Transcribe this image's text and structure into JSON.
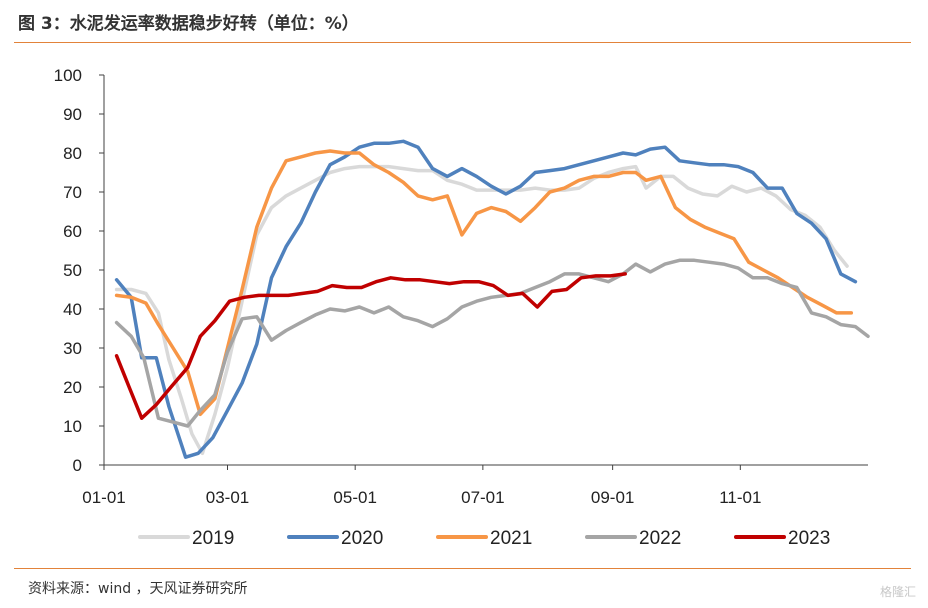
{
  "header": {
    "title": "图 3：水泥发运率数据稳步好转（单位：%）"
  },
  "footer": {
    "source": "资料来源：wind ，天风证券研究所",
    "watermark": "格隆汇"
  },
  "chart_data": {
    "type": "line",
    "title": "图 3：水泥发运率数据稳步好转（单位：%）",
    "xlabel": "",
    "ylabel": "",
    "ylim": [
      0,
      100
    ],
    "yticks": [
      0,
      10,
      20,
      30,
      40,
      50,
      60,
      70,
      80,
      90,
      100
    ],
    "xlim": [
      1,
      366
    ],
    "xticks": [
      {
        "label": "01-01",
        "day": 1
      },
      {
        "label": "03-01",
        "day": 60
      },
      {
        "label": "05-01",
        "day": 121
      },
      {
        "label": "07-01",
        "day": 182
      },
      {
        "label": "09-01",
        "day": 244
      },
      {
        "label": "11-01",
        "day": 305
      }
    ],
    "x_unit": "day of year",
    "legend_position": "bottom",
    "grid": false,
    "series": [
      {
        "name": "2019",
        "color": "#d9d9d9",
        "points": [
          [
            7,
            45
          ],
          [
            14,
            45
          ],
          [
            21,
            44
          ],
          [
            27,
            39
          ],
          [
            32,
            27
          ],
          [
            38,
            17
          ],
          [
            43,
            8
          ],
          [
            48,
            3
          ],
          [
            54,
            13
          ],
          [
            60,
            25
          ],
          [
            67,
            42
          ],
          [
            74,
            59
          ],
          [
            81,
            66
          ],
          [
            88,
            69
          ],
          [
            95,
            71
          ],
          [
            102,
            73
          ],
          [
            109,
            75
          ],
          [
            116,
            76
          ],
          [
            123,
            76.5
          ],
          [
            130,
            76.5
          ],
          [
            137,
            76.5
          ],
          [
            144,
            76
          ],
          [
            151,
            75.5
          ],
          [
            158,
            75.5
          ],
          [
            165,
            73
          ],
          [
            172,
            72
          ],
          [
            179,
            70.5
          ],
          [
            186,
            70.5
          ],
          [
            193,
            70.5
          ],
          [
            200,
            70.5
          ],
          [
            207,
            71
          ],
          [
            214,
            70.5
          ],
          [
            221,
            70.5
          ],
          [
            228,
            71
          ],
          [
            235,
            73.5
          ],
          [
            242,
            75
          ],
          [
            249,
            76
          ],
          [
            255,
            76.5
          ],
          [
            260,
            71
          ],
          [
            267,
            74
          ],
          [
            273,
            74
          ],
          [
            280,
            71
          ],
          [
            287,
            69.5
          ],
          [
            294,
            69
          ],
          [
            301,
            71.5
          ],
          [
            308,
            70
          ],
          [
            315,
            71
          ],
          [
            322,
            69
          ],
          [
            329,
            65.5
          ],
          [
            336,
            64
          ],
          [
            343,
            61
          ],
          [
            350,
            55
          ],
          [
            356,
            51
          ]
        ]
      },
      {
        "name": "2020",
        "color": "#4f81bd",
        "points": [
          [
            7,
            47.5
          ],
          [
            14,
            43
          ],
          [
            19,
            27.5
          ],
          [
            26,
            27.5
          ],
          [
            32,
            15
          ],
          [
            40,
            2
          ],
          [
            46,
            3
          ],
          [
            53,
            7
          ],
          [
            60,
            14
          ],
          [
            67,
            21
          ],
          [
            74,
            31
          ],
          [
            81,
            48
          ],
          [
            88,
            56
          ],
          [
            95,
            62
          ],
          [
            102,
            70
          ],
          [
            109,
            77
          ],
          [
            116,
            79
          ],
          [
            123,
            81.5
          ],
          [
            130,
            82.5
          ],
          [
            137,
            82.5
          ],
          [
            144,
            83
          ],
          [
            151,
            81.5
          ],
          [
            158,
            76
          ],
          [
            165,
            74
          ],
          [
            172,
            76
          ],
          [
            179,
            74
          ],
          [
            186,
            71.5
          ],
          [
            193,
            69.5
          ],
          [
            200,
            71.5
          ],
          [
            207,
            75
          ],
          [
            214,
            75.5
          ],
          [
            221,
            76
          ],
          [
            228,
            77
          ],
          [
            235,
            78
          ],
          [
            242,
            79
          ],
          [
            249,
            80
          ],
          [
            255,
            79.5
          ],
          [
            262,
            81
          ],
          [
            269,
            81.5
          ],
          [
            276,
            78
          ],
          [
            283,
            77.5
          ],
          [
            290,
            77
          ],
          [
            297,
            77
          ],
          [
            304,
            76.5
          ],
          [
            311,
            75
          ],
          [
            318,
            71
          ],
          [
            325,
            71
          ],
          [
            332,
            64.5
          ],
          [
            339,
            62
          ],
          [
            346,
            58
          ],
          [
            353,
            49
          ],
          [
            360,
            47
          ]
        ]
      },
      {
        "name": "2021",
        "color": "#f79646",
        "points": [
          [
            7,
            43.5
          ],
          [
            14,
            43
          ],
          [
            21,
            41.5
          ],
          [
            27,
            36
          ],
          [
            34,
            30
          ],
          [
            41,
            24
          ],
          [
            47,
            13
          ],
          [
            54,
            17
          ],
          [
            60,
            30
          ],
          [
            67,
            45
          ],
          [
            74,
            61
          ],
          [
            81,
            71
          ],
          [
            88,
            78
          ],
          [
            95,
            79
          ],
          [
            102,
            80
          ],
          [
            109,
            80.5
          ],
          [
            116,
            80
          ],
          [
            123,
            80
          ],
          [
            130,
            77
          ],
          [
            137,
            75
          ],
          [
            144,
            72.5
          ],
          [
            151,
            69
          ],
          [
            158,
            68
          ],
          [
            165,
            69
          ],
          [
            172,
            59
          ],
          [
            179,
            64.5
          ],
          [
            186,
            66
          ],
          [
            193,
            65
          ],
          [
            200,
            62.5
          ],
          [
            207,
            66
          ],
          [
            214,
            70
          ],
          [
            221,
            71
          ],
          [
            228,
            73
          ],
          [
            235,
            74
          ],
          [
            242,
            74
          ],
          [
            249,
            75
          ],
          [
            255,
            75
          ],
          [
            260,
            73
          ],
          [
            267,
            74
          ],
          [
            274,
            66
          ],
          [
            281,
            63
          ],
          [
            288,
            61
          ],
          [
            295,
            59.5
          ],
          [
            302,
            58
          ],
          [
            309,
            52
          ],
          [
            316,
            50
          ],
          [
            323,
            48
          ],
          [
            330,
            45.5
          ],
          [
            337,
            43
          ],
          [
            344,
            41
          ],
          [
            351,
            39
          ],
          [
            358,
            39
          ]
        ]
      },
      {
        "name": "2022",
        "color": "#a5a5a5",
        "points": [
          [
            7,
            36.5
          ],
          [
            14,
            33
          ],
          [
            20,
            27.5
          ],
          [
            27,
            12
          ],
          [
            34,
            11
          ],
          [
            41,
            10
          ],
          [
            47,
            14
          ],
          [
            54,
            18
          ],
          [
            60,
            29
          ],
          [
            67,
            37.5
          ],
          [
            74,
            38
          ],
          [
            81,
            32
          ],
          [
            88,
            34.5
          ],
          [
            95,
            36.5
          ],
          [
            102,
            38.5
          ],
          [
            109,
            40
          ],
          [
            116,
            39.5
          ],
          [
            123,
            40.5
          ],
          [
            130,
            39
          ],
          [
            137,
            40.5
          ],
          [
            144,
            38
          ],
          [
            151,
            37
          ],
          [
            158,
            35.5
          ],
          [
            165,
            37.5
          ],
          [
            172,
            40.5
          ],
          [
            179,
            42
          ],
          [
            186,
            43
          ],
          [
            193,
            43.5
          ],
          [
            200,
            44
          ],
          [
            207,
            45.5
          ],
          [
            214,
            47
          ],
          [
            221,
            49
          ],
          [
            228,
            49
          ],
          [
            235,
            48
          ],
          [
            242,
            47
          ],
          [
            249,
            49
          ],
          [
            255,
            51.5
          ],
          [
            262,
            49.5
          ],
          [
            269,
            51.5
          ],
          [
            276,
            52.5
          ],
          [
            283,
            52.5
          ],
          [
            290,
            52
          ],
          [
            297,
            51.5
          ],
          [
            304,
            50.5
          ],
          [
            311,
            48
          ],
          [
            318,
            48
          ],
          [
            325,
            46.5
          ],
          [
            332,
            45.5
          ],
          [
            339,
            39
          ],
          [
            346,
            38
          ],
          [
            353,
            36
          ],
          [
            360,
            35.5
          ],
          [
            366,
            33
          ]
        ]
      },
      {
        "name": "2023",
        "color": "#c00000",
        "points": [
          [
            7,
            28
          ],
          [
            13,
            20
          ],
          [
            19,
            12
          ],
          [
            26,
            15.5
          ],
          [
            33,
            20
          ],
          [
            41,
            25
          ],
          [
            47,
            33
          ],
          [
            54,
            37
          ],
          [
            61,
            42
          ],
          [
            68,
            43
          ],
          [
            75,
            43.5
          ],
          [
            82,
            43.5
          ],
          [
            89,
            43.5
          ],
          [
            96,
            44
          ],
          [
            103,
            44.5
          ],
          [
            110,
            46
          ],
          [
            117,
            45.5
          ],
          [
            124,
            45.5
          ],
          [
            131,
            47
          ],
          [
            138,
            48
          ],
          [
            145,
            47.5
          ],
          [
            152,
            47.5
          ],
          [
            159,
            47
          ],
          [
            166,
            46.5
          ],
          [
            173,
            47
          ],
          [
            180,
            47
          ],
          [
            187,
            46
          ],
          [
            194,
            43.5
          ],
          [
            201,
            44
          ],
          [
            208,
            40.5
          ],
          [
            215,
            44.5
          ],
          [
            222,
            45
          ],
          [
            229,
            48
          ],
          [
            236,
            48.5
          ],
          [
            243,
            48.5
          ],
          [
            250,
            49
          ]
        ]
      }
    ]
  }
}
